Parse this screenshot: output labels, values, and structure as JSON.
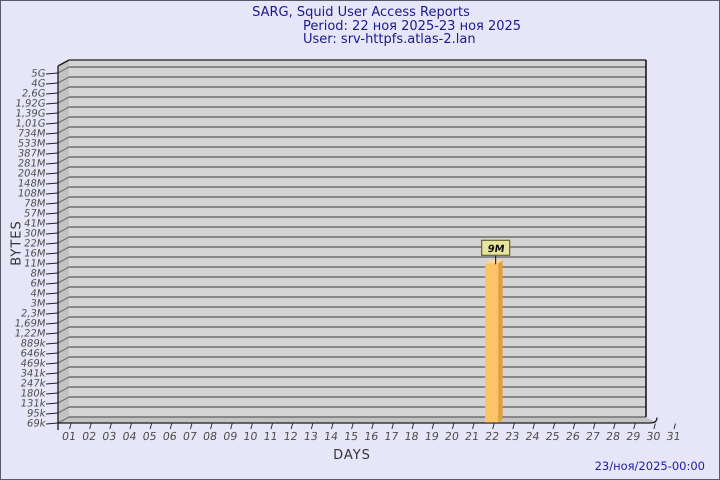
{
  "window": {
    "background": "#E6E6F8",
    "border_color": "#5A5A66"
  },
  "header": {
    "title": "SARG, Squid User Access Reports",
    "period": "Period: 22 ноя 2025-23 ноя 2025",
    "user": "User: srv-httpfs.atlas-2.lan",
    "text_color": "#1A1A8C"
  },
  "footer": {
    "timestamp": "23/ноя/2025-00:00",
    "text_color": "#1E1EA0"
  },
  "chart_data": {
    "type": "bar",
    "title": "SARG, Squid User Access Reports",
    "subtitle_period": "Period: 22 ноя 2025-23 ноя 2025",
    "subtitle_user": "User: srv-httpfs.atlas-2.lan",
    "xlabel": "DAYS",
    "ylabel": "BYTES",
    "scale": "log",
    "grid": true,
    "x_ticks": [
      "01",
      "02",
      "03",
      "04",
      "05",
      "06",
      "07",
      "08",
      "09",
      "10",
      "11",
      "12",
      "13",
      "14",
      "15",
      "16",
      "17",
      "18",
      "19",
      "20",
      "21",
      "22",
      "23",
      "24",
      "25",
      "26",
      "27",
      "28",
      "29",
      "30",
      "31"
    ],
    "y_ticks": [
      "5G",
      "4G",
      "2,6G",
      "1,92G",
      "1,39G",
      "1,01G",
      "734M",
      "533M",
      "387M",
      "281M",
      "204M",
      "148M",
      "108M",
      "78M",
      "57M",
      "41M",
      "30M",
      "22M",
      "16M",
      "11M",
      "8M",
      "6M",
      "4M",
      "3M",
      "2,3M",
      "1,69M",
      "1,22M",
      "889k",
      "646k",
      "469k",
      "341k",
      "247k",
      "180k",
      "131k",
      "95k",
      "69k"
    ],
    "bars": [
      {
        "day": "22",
        "value": "9M",
        "label": "9M"
      }
    ],
    "colors": {
      "plot_bg": "#D5D5D5",
      "grid": "#6E6E6E",
      "wall": "#C3C3C3",
      "frame_line": "#1A1A1A",
      "bar_face": "#FCC468",
      "bar_side": "#E0A040",
      "bar_top": "#FFD98F",
      "annotation_bg": "#E8E4A0",
      "annotation_border": "#646428",
      "tick_text": "#4D4D4D"
    }
  }
}
